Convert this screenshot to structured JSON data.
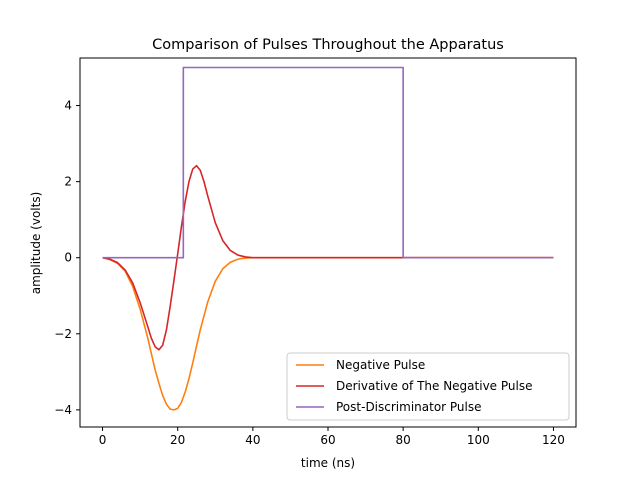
{
  "chart_data": {
    "type": "line",
    "title": "Comparison of Pulses Throughout the Apparatus",
    "xlabel": "time (ns)",
    "ylabel": "amplitude (volts)",
    "xlim": [
      -6,
      126
    ],
    "ylim": [
      -4.45,
      5.25
    ],
    "xticks": [
      0,
      20,
      40,
      60,
      80,
      100,
      120
    ],
    "yticks": [
      -4,
      -2,
      0,
      2,
      4
    ],
    "grid": false,
    "legend_position": "lower-right",
    "series": [
      {
        "name": "Negative Pulse",
        "color": "#ff7f0e",
        "x": [
          0,
          2,
          4,
          6,
          8,
          10,
          12,
          14,
          15,
          16,
          17,
          18,
          19,
          20,
          21,
          22,
          23,
          24,
          25,
          26,
          28,
          30,
          32,
          34,
          36,
          38,
          40,
          44,
          50,
          60,
          80,
          100,
          120
        ],
        "y": [
          0,
          -0.05,
          -0.15,
          -0.35,
          -0.75,
          -1.35,
          -2.1,
          -2.95,
          -3.3,
          -3.62,
          -3.85,
          -3.98,
          -4.0,
          -3.96,
          -3.8,
          -3.53,
          -3.18,
          -2.77,
          -2.33,
          -1.9,
          -1.16,
          -0.62,
          -0.29,
          -0.12,
          -0.04,
          -0.01,
          0,
          0,
          0,
          0,
          0,
          0,
          0
        ]
      },
      {
        "name": "Derivative of The Negative Pulse",
        "color": "#d62728",
        "x": [
          0,
          2,
          4,
          6,
          8,
          10,
          12,
          13,
          14,
          15,
          16,
          17,
          18,
          19,
          20,
          21,
          22,
          23,
          24,
          25,
          26,
          27,
          28,
          30,
          32,
          34,
          36,
          38,
          40,
          44,
          50,
          60,
          80,
          100,
          120
        ],
        "y": [
          0,
          -0.04,
          -0.13,
          -0.32,
          -0.66,
          -1.18,
          -1.8,
          -2.12,
          -2.34,
          -2.42,
          -2.3,
          -1.9,
          -1.28,
          -0.6,
          0.1,
          0.82,
          1.48,
          2.0,
          2.33,
          2.42,
          2.3,
          2.0,
          1.62,
          0.92,
          0.45,
          0.19,
          0.07,
          0.02,
          0,
          0,
          0,
          0,
          0,
          0,
          0
        ]
      },
      {
        "name": "Post-Discriminator Pulse",
        "color": "#9467bd",
        "x": [
          0,
          21.5,
          21.5,
          80,
          80,
          120
        ],
        "y": [
          0,
          0,
          5,
          5,
          0,
          0
        ]
      }
    ]
  }
}
